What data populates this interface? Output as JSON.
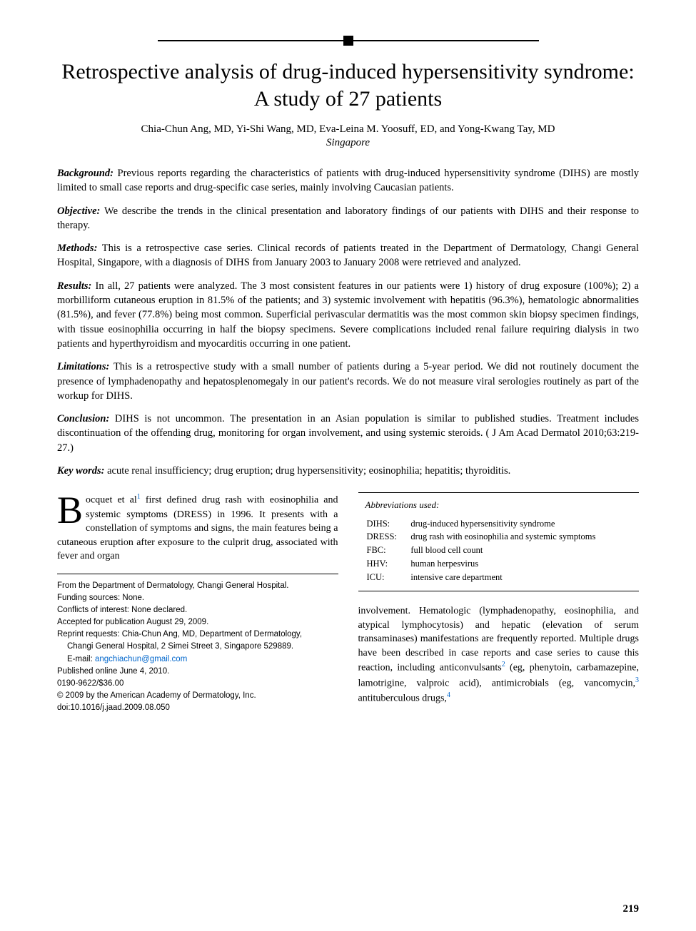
{
  "title": "Retrospective analysis of drug-induced hypersensitivity syndrome: A study of 27 patients",
  "authors": "Chia-Chun Ang, MD, Yi-Shi Wang, MD, Eva-Leina M. Yoosuff, ED, and Yong-Kwang Tay, MD",
  "location": "Singapore",
  "abstract": {
    "background": {
      "label": "Background:",
      "text": " Previous reports regarding the characteristics of patients with drug-induced hypersensitivity syndrome (DIHS) are mostly limited to small case reports and drug-specific case series, mainly involving Caucasian patients."
    },
    "objective": {
      "label": "Objective:",
      "text": " We describe the trends in the clinical presentation and laboratory findings of our patients with DIHS and their response to therapy."
    },
    "methods": {
      "label": "Methods:",
      "text": " This is a retrospective case series. Clinical records of patients treated in the Department of Dermatology, Changi General Hospital, Singapore, with a diagnosis of DIHS from January 2003 to January 2008 were retrieved and analyzed."
    },
    "results": {
      "label": "Results:",
      "text": " In all, 27 patients were analyzed. The 3 most consistent features in our patients were 1) history of drug exposure (100%); 2) a morbilliform cutaneous eruption in 81.5% of the patients; and 3) systemic involvement with hepatitis (96.3%), hematologic abnormalities (81.5%), and fever (77.8%) being most common. Superficial perivascular dermatitis was the most common skin biopsy specimen findings, with tissue eosinophilia occurring in half the biopsy specimens. Severe complications included renal failure requiring dialysis in two patients and hyperthyroidism and myocarditis occurring in one patient."
    },
    "limitations": {
      "label": "Limitations:",
      "text": " This is a retrospective study with a small number of patients during a 5-year period. We did not routinely document the presence of lymphadenopathy and hepatosplenomegaly in our patient's records. We do not measure viral serologies routinely as part of the workup for DIHS."
    },
    "conclusion": {
      "label": "Conclusion:",
      "text": " DIHS is not uncommon. The presentation in an Asian population is similar to published studies. Treatment includes discontinuation of the offending drug, monitoring for organ involvement, and using systemic steroids. ( J Am Acad Dermatol 2010;63:219-27.)"
    },
    "keywords": {
      "label": "Key words:",
      "text": " acute renal insufficiency; drug eruption; drug hypersensitivity; eosinophilia; hepatitis; thyroiditis."
    }
  },
  "body": {
    "dropcap": "B",
    "para1_part1": "ocquet et al",
    "ref1": "1",
    "para1_part2": " first defined drug rash with eosinophilia and systemic symptoms (DRESS) in 1996. It presents with a constellation of symptoms and signs, the main features being a cutaneous eruption after exposure to the culprit drug, associated with fever and organ",
    "para2_part1": "involvement. Hematologic (lymphadenopathy, eosinophilia, and atypical lymphocytosis) and hepatic (elevation of serum transaminases) manifestations are frequently reported. Multiple drugs have been described in case reports and case series to cause this reaction, including anticonvulsants",
    "ref2": "2",
    "para2_part2": " (eg, phenytoin, carbamazepine, lamotrigine, valproic acid), antimicrobials (eg, vancomycin,",
    "ref3": "3",
    "para2_part3": " antituberculous drugs,",
    "ref4": "4"
  },
  "abbreviations": {
    "title": "Abbreviations used:",
    "items": [
      {
        "abbr": "DIHS:",
        "def": "drug-induced hypersensitivity syndrome"
      },
      {
        "abbr": "DRESS:",
        "def": "drug rash with eosinophilia and systemic symptoms"
      },
      {
        "abbr": "FBC:",
        "def": "full blood cell count"
      },
      {
        "abbr": "HHV:",
        "def": "human herpesvirus"
      },
      {
        "abbr": "ICU:",
        "def": "intensive care department"
      }
    ]
  },
  "footer": {
    "from": "From the Department of Dermatology, Changi General Hospital.",
    "funding": "Funding sources: None.",
    "conflicts": "Conflicts of interest: None declared.",
    "accepted": "Accepted for publication August 29, 2009.",
    "reprint1": "Reprint requests: Chia-Chun Ang, MD, Department of Dermatology,",
    "reprint2": "Changi General Hospital, 2 Simei Street 3, Singapore 529889.",
    "email_label": "E-mail: ",
    "email": "angchiachun@gmail.com",
    "published": "Published online June 4, 2010.",
    "issn": "0190-9622/$36.00",
    "copyright": "© 2009 by the American Academy of Dermatology, Inc.",
    "doi": "doi:10.1016/j.jaad.2009.08.050"
  },
  "page_number": "219",
  "colors": {
    "text": "#000000",
    "link": "#0066cc",
    "background": "#ffffff"
  },
  "typography": {
    "title_fontsize": 30,
    "body_fontsize": 14.5,
    "footer_fontsize": 11.5,
    "abbr_fontsize": 12.5
  }
}
